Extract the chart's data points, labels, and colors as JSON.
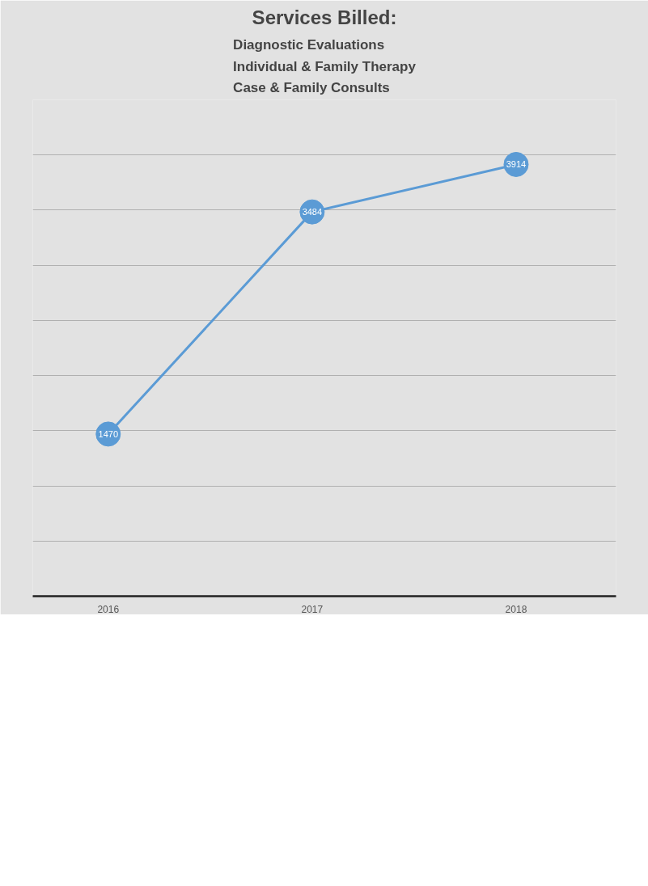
{
  "chart_data": {
    "type": "line",
    "title": "Services Billed:",
    "subtitle": "Diagnostic Evaluations\nIndividual & Family Therapy\nCase & Family Consults",
    "categories": [
      "2016",
      "2017",
      "2018"
    ],
    "series": [
      {
        "color": "#5b9bd5",
        "values": [
          1470,
          3484,
          3914
        ]
      }
    ],
    "ylim": [
      0,
      4500
    ],
    "yticks": [
      0,
      500,
      1000,
      1500,
      2000,
      2500,
      3000,
      3500,
      4000,
      4500
    ],
    "grid": "y",
    "marker": "circle",
    "line_style": "solid",
    "data_labels": true,
    "tick_labels": "x"
  }
}
